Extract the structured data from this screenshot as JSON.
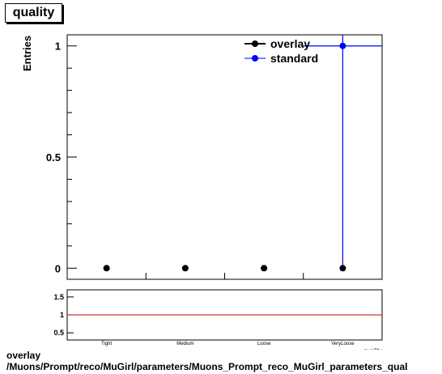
{
  "title": "quality",
  "caption": {
    "line1": "overlay",
    "line2": "/Muons/Prompt/reco/MuGirl/parameters/Muons_Prompt_reco_MuGirl_parameters_qual"
  },
  "chart_data": [
    {
      "type": "scatter",
      "title": "quality",
      "ylabel": "Entries",
      "xlabel": "quality",
      "categories": [
        "Tight",
        "Medium",
        "Loose",
        "VeryLoose"
      ],
      "ylim": [
        -0.05,
        1.05
      ],
      "yticks": [
        0,
        0.5,
        1
      ],
      "ytick_labels": [
        "0",
        "0.5",
        "1"
      ],
      "legend": {
        "position": "top-right",
        "entries": [
          "overlay",
          "standard"
        ]
      },
      "series": [
        {
          "name": "overlay",
          "color": "#000000",
          "values": [
            0,
            0,
            0,
            0
          ]
        },
        {
          "name": "standard",
          "color": "#0000ff",
          "values": [
            0,
            0,
            0,
            1
          ]
        }
      ],
      "grid": false
    },
    {
      "type": "line",
      "categories": [
        "Tight",
        "Medium",
        "Loose",
        "VeryLoose"
      ],
      "ylim": [
        0.3,
        1.7
      ],
      "yticks": [
        0.5,
        1,
        1.5
      ],
      "ytick_labels": [
        "0.5",
        "1",
        "1.5"
      ],
      "reference_line": {
        "value": 1,
        "color": "#cc0000"
      },
      "grid": false
    }
  ]
}
